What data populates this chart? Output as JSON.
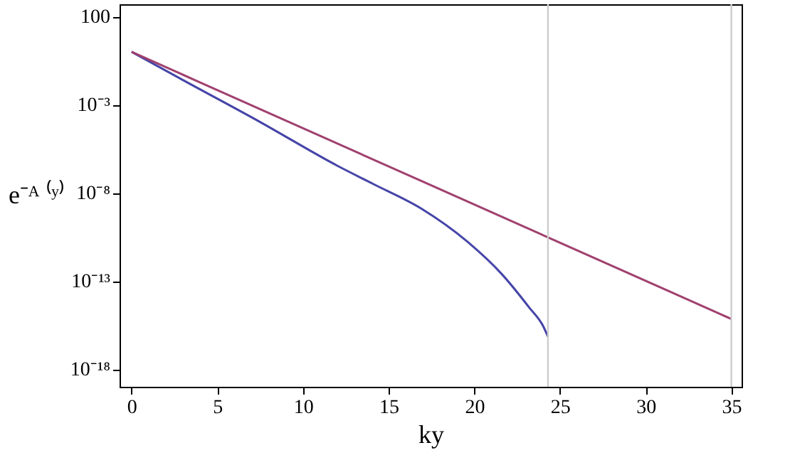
{
  "chart_data": {
    "type": "line",
    "xlabel": "ky",
    "ylabel": "e⁻ᴬ ⁽ʸ⁾",
    "log": "y",
    "grid": false,
    "legend": false,
    "marker": "none",
    "line_style": "solid",
    "xlim": [
      -0.7,
      35.6
    ],
    "xticks": [
      0,
      5,
      10,
      15,
      20,
      25,
      30,
      35
    ],
    "ylim": [
      1e-19,
      500
    ],
    "yticks": [
      {
        "value": 1e-18,
        "label": "10⁻¹⁸"
      },
      {
        "value": 1e-13,
        "label": "10⁻¹³"
      },
      {
        "value": 1e-08,
        "label": "10⁻⁸"
      },
      {
        "value": 0.001,
        "label": "10⁻³"
      },
      100
    ],
    "series": [
      {
        "color": "#4545a8",
        "x": [
          0,
          3,
          7.5,
          12,
          14.1,
          16.9,
          19.6,
          21.6,
          23.2,
          24,
          24.3
        ],
        "values": [
          1,
          0.025,
          0.000105,
          3.5e-07,
          3.2e-08,
          1.3e-09,
          1.7e-11,
          2.5e-13,
          3.2e-15,
          3e-16,
          7e-17
        ]
      },
      {
        "color": "#a0406e",
        "x": [
          0,
          24.3,
          35
        ],
        "values": [
          1,
          3e-11,
          7e-16
        ]
      }
    ],
    "ref_lines": [
      {
        "axis": "x",
        "value": 24.3,
        "color": "#cccccc"
      },
      {
        "axis": "x",
        "value": 35,
        "color": "#cccccc"
      }
    ]
  }
}
